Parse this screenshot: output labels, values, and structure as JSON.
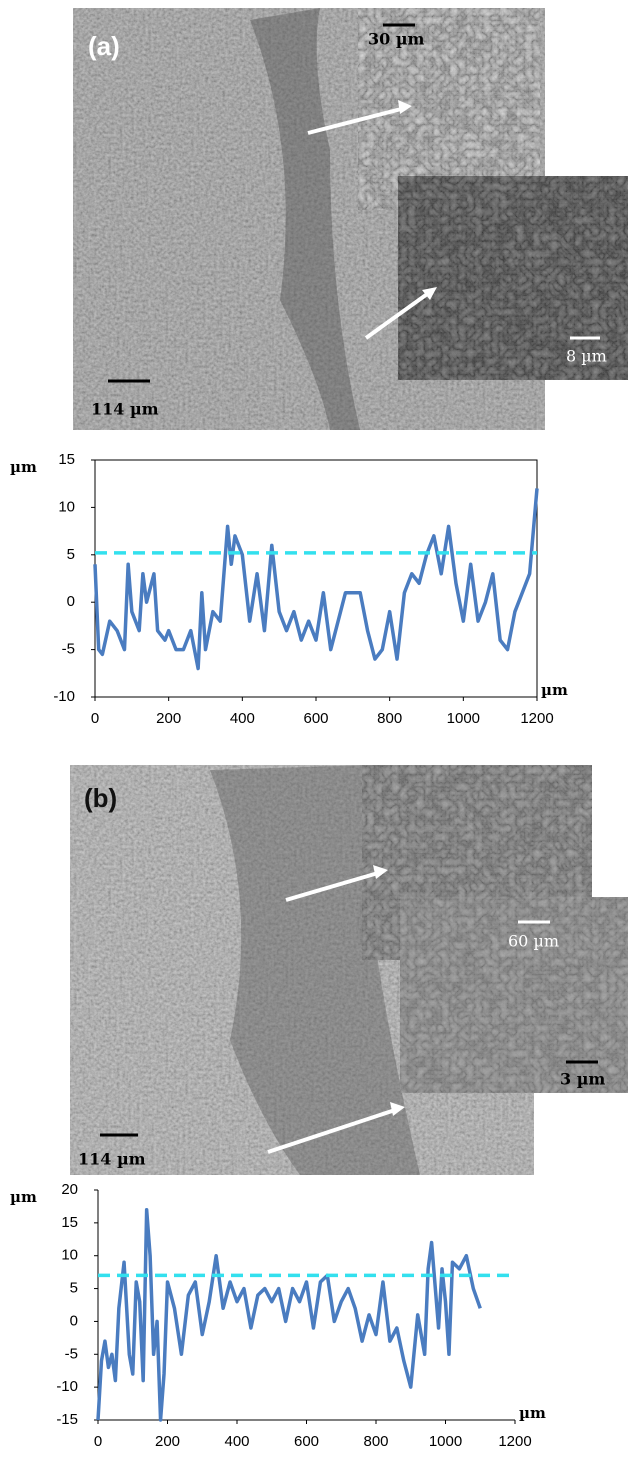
{
  "chart_data": [
    {
      "type": "line",
      "y_label": "µm",
      "x_label": "µm",
      "frame": true,
      "xlim": [
        0,
        1200
      ],
      "xticks": [
        0,
        200,
        400,
        600,
        800,
        1000,
        1200
      ],
      "ylim": [
        -10,
        15
      ],
      "yticks": [
        -10,
        -5,
        0,
        5,
        10,
        15
      ],
      "reference_line": {
        "value": 5.2,
        "color": "#33e0ee"
      },
      "series": [
        {
          "color": "#4a7cc0",
          "x": [
            0,
            10,
            20,
            40,
            60,
            80,
            90,
            100,
            120,
            130,
            140,
            160,
            170,
            190,
            200,
            220,
            240,
            260,
            280,
            290,
            300,
            320,
            340,
            360,
            370,
            380,
            400,
            420,
            440,
            460,
            480,
            500,
            520,
            540,
            560,
            580,
            600,
            620,
            640,
            660,
            680,
            700,
            720,
            740,
            760,
            780,
            800,
            820,
            840,
            860,
            880,
            900,
            920,
            940,
            960,
            980,
            1000,
            1020,
            1040,
            1060,
            1080,
            1100,
            1120,
            1140,
            1160,
            1180,
            1200
          ],
          "values": [
            4,
            -5,
            -5.5,
            -2,
            -3,
            -5,
            4,
            -1,
            -3,
            3,
            0,
            3,
            -3,
            -4,
            -3,
            -5,
            -5,
            -3,
            -7,
            1,
            -5,
            -1,
            -2,
            8,
            4,
            7,
            5,
            -2,
            3,
            -3,
            6,
            -1,
            -3,
            -1,
            -4,
            -2,
            -4,
            1,
            -5,
            -2,
            1,
            1,
            1,
            -3,
            -6,
            -5,
            -1,
            -6,
            1,
            3,
            2,
            5,
            7,
            3,
            8,
            2,
            -2,
            4,
            -2,
            0,
            3,
            -4,
            -5,
            -1,
            1,
            3,
            12
          ]
        }
      ]
    },
    {
      "type": "line",
      "y_label": "µm",
      "x_label": "µm",
      "frame": false,
      "xlim": [
        0,
        1200
      ],
      "xticks": [
        0,
        200,
        400,
        600,
        800,
        1000,
        1200
      ],
      "ylim": [
        -15,
        20
      ],
      "yticks": [
        -15,
        -10,
        -5,
        0,
        5,
        10,
        15,
        20
      ],
      "reference_line": {
        "value": 7,
        "color": "#33e0ee"
      },
      "series": [
        {
          "color": "#4a7cc0",
          "x": [
            0,
            10,
            20,
            30,
            40,
            50,
            60,
            75,
            90,
            100,
            110,
            120,
            130,
            140,
            150,
            160,
            170,
            180,
            190,
            200,
            220,
            240,
            260,
            280,
            300,
            320,
            340,
            360,
            380,
            400,
            420,
            440,
            460,
            480,
            500,
            520,
            540,
            560,
            580,
            600,
            620,
            640,
            660,
            680,
            700,
            720,
            740,
            760,
            780,
            800,
            820,
            840,
            860,
            880,
            900,
            920,
            940,
            950,
            960,
            980,
            990,
            1000,
            1010,
            1020,
            1040,
            1060,
            1080,
            1100
          ],
          "values": [
            -15,
            -6,
            -3,
            -7,
            -5,
            -9,
            2,
            9,
            -5,
            -8,
            6,
            3,
            -9,
            17,
            10,
            -5,
            0,
            -15,
            -8,
            6,
            2,
            -5,
            4,
            6,
            -2,
            3,
            10,
            2,
            6,
            3,
            5,
            -1,
            4,
            5,
            3,
            5,
            0,
            5,
            3,
            6,
            -1,
            6,
            7,
            0,
            3,
            5,
            2,
            -3,
            1,
            -2,
            6,
            -3,
            -1,
            -6,
            -10,
            1,
            -5,
            8,
            12,
            -1,
            8,
            3,
            -5,
            9,
            8,
            10,
            5,
            2
          ]
        }
      ]
    }
  ],
  "images": [
    {
      "label": "(a)",
      "inset_scales": [
        "30 µm",
        "8 µm"
      ],
      "scale": "114 µm"
    },
    {
      "label": "(b)",
      "inset_scales": [
        "60 µm",
        "3 µm"
      ],
      "scale": "114 µm"
    }
  ]
}
